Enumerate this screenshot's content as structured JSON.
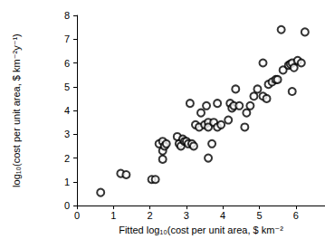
{
  "chart_data": {
    "type": "scatter",
    "x_label": "Fitted log₁₀(cost per unit area, $ km⁻²",
    "y_label": "log₁₀(cost per unit area, $ km⁻²y⁻¹)",
    "color": "#000000",
    "marker": "open_circle",
    "grid": false,
    "xlim": [
      0,
      6.8
    ],
    "xticks": [
      0,
      1,
      2,
      3,
      4,
      5,
      6
    ],
    "ylim": [
      0,
      8
    ],
    "yticks": [
      0,
      1,
      2,
      3,
      4,
      5,
      6,
      7,
      8
    ],
    "x": [
      0.65,
      1.2,
      1.35,
      2.05,
      2.15,
      2.25,
      2.35,
      2.35,
      2.35,
      2.4,
      2.45,
      2.75,
      2.8,
      2.85,
      2.9,
      2.95,
      3.0,
      3.05,
      3.15,
      3.2,
      3.1,
      3.25,
      3.35,
      3.4,
      3.5,
      3.55,
      3.6,
      3.6,
      3.7,
      3.6,
      3.75,
      3.85,
      3.85,
      3.95,
      4.15,
      4.2,
      4.25,
      4.3,
      4.35,
      4.45,
      4.6,
      4.65,
      4.75,
      4.85,
      4.95,
      5.1,
      5.1,
      5.2,
      5.25,
      5.35,
      5.45,
      5.5,
      5.6,
      5.65,
      5.8,
      5.85,
      5.9,
      5.9,
      5.95,
      6.05,
      6.25,
      6.15
    ],
    "values": [
      0.55,
      1.35,
      1.3,
      1.1,
      1.1,
      2.6,
      2.7,
      2.3,
      1.95,
      2.5,
      2.6,
      2.9,
      2.6,
      2.5,
      2.8,
      2.7,
      2.7,
      2.6,
      2.6,
      2.5,
      4.3,
      3.4,
      3.3,
      3.9,
      3.4,
      4.2,
      3.5,
      3.3,
      2.6,
      2.0,
      3.5,
      3.3,
      4.3,
      3.4,
      3.6,
      4.3,
      4.1,
      4.2,
      4.9,
      4.2,
      3.3,
      3.9,
      4.2,
      4.6,
      4.9,
      4.6,
      6.0,
      4.5,
      5.1,
      5.2,
      5.3,
      5.3,
      7.4,
      5.7,
      5.9,
      5.95,
      6.0,
      4.8,
      5.8,
      6.1,
      7.3,
      6.0
    ]
  }
}
